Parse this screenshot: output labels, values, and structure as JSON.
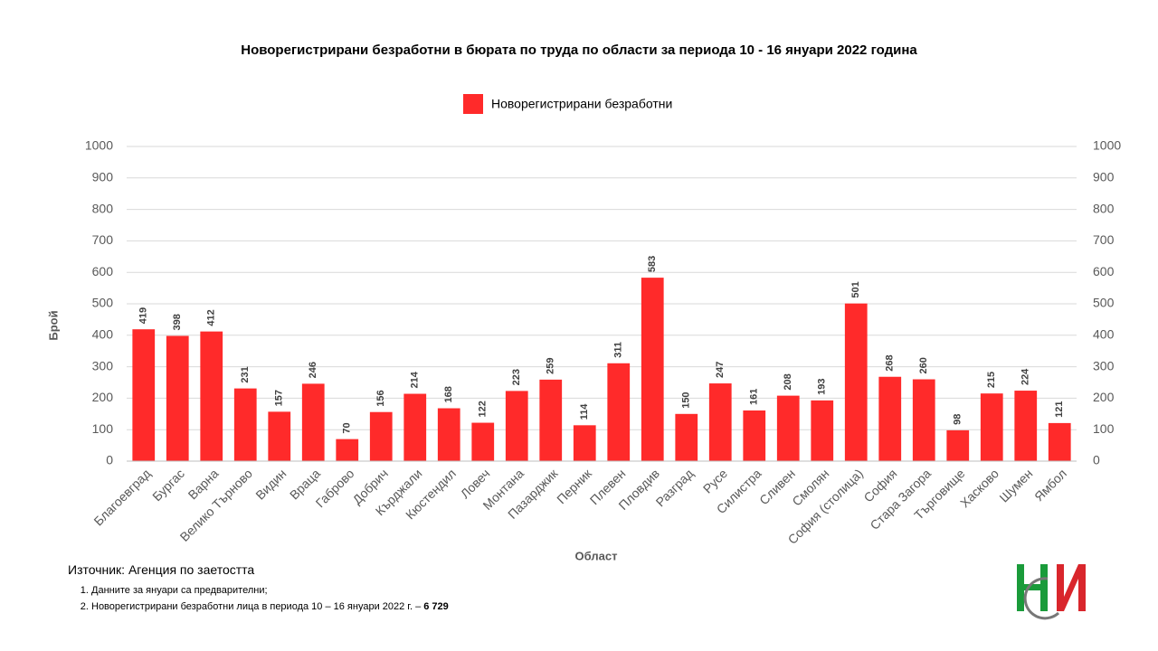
{
  "chart_data": {
    "type": "bar",
    "title": "Новорегистрирани безработни в бюрата по труда по области за периода 10 - 16 януари 2022 година",
    "x_label": "Област",
    "y_label": "Брой",
    "categories": [
      "Благоевград",
      "Бургас",
      "Варна",
      "Велико Търново",
      "Видин",
      "Враца",
      "Габрово",
      "Добрич",
      "Кърджали",
      "Кюстендил",
      "Ловеч",
      "Монтана",
      "Пазарджик",
      "Перник",
      "Плевен",
      "Пловдив",
      "Разград",
      "Русе",
      "Силистра",
      "Сливен",
      "Смолян",
      "София (столица)",
      "София",
      "Стара Загора",
      "Търговище",
      "Хасково",
      "Шумен",
      "Ямбол"
    ],
    "series": [
      {
        "name": "Новорегистрирани безработни",
        "color": "#ff2a2a",
        "values": [
          419,
          398,
          412,
          231,
          157,
          246,
          70,
          156,
          214,
          168,
          122,
          223,
          259,
          114,
          311,
          583,
          150,
          247,
          161,
          208,
          193,
          501,
          268,
          260,
          98,
          215,
          224,
          121
        ]
      }
    ],
    "ylim": [
      0,
      1000
    ],
    "yticks": [
      0,
      100,
      200,
      300,
      400,
      500,
      600,
      700,
      800,
      900,
      1000
    ],
    "y2lim": [
      0,
      1000
    ],
    "y2ticks": [
      0,
      100,
      200,
      300,
      400,
      500,
      600,
      700,
      800,
      900,
      1000
    ],
    "grid": true,
    "legend": "top"
  },
  "notes": {
    "source": "Източник: Агенция по заетостта",
    "items": [
      {
        "text": "Данните за януари са предварителни;"
      },
      {
        "text": "Новорегистрирани безработни лица в периода 10 – 16 януари 2022 г. – ",
        "bold": "6 729"
      }
    ]
  }
}
